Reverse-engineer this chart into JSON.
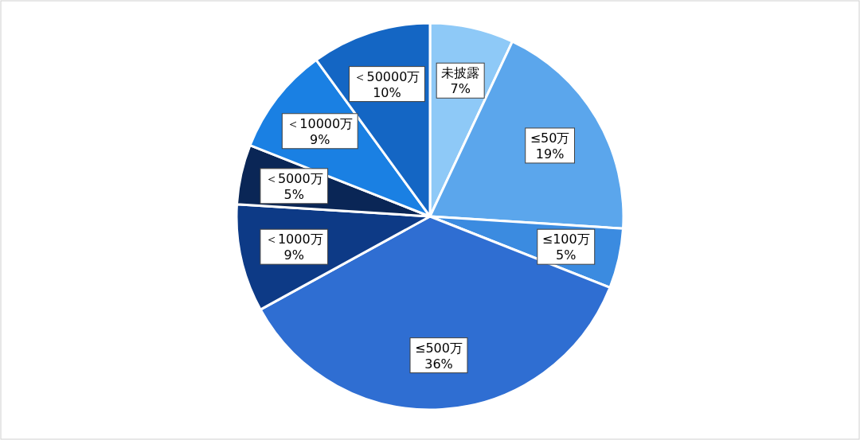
{
  "chart_data": {
    "type": "pie",
    "categories": [
      "未披露",
      "≤50万",
      "≤100万",
      "≤500万",
      "＜1000万",
      "＜5000万",
      "＜10000万",
      "＜50000万"
    ],
    "values": [
      7,
      19,
      5,
      36,
      9,
      5,
      9,
      10
    ],
    "colors": [
      "#8ec9f7",
      "#5ba6ec",
      "#3b8be0",
      "#2f6ed2",
      "#0d3a86",
      "#0a2656",
      "#1a80e3",
      "#1466c4"
    ],
    "value_labels": [
      "7%",
      "19%",
      "5%",
      "36%",
      "9%",
      "5%",
      "9%",
      "10%"
    ]
  }
}
